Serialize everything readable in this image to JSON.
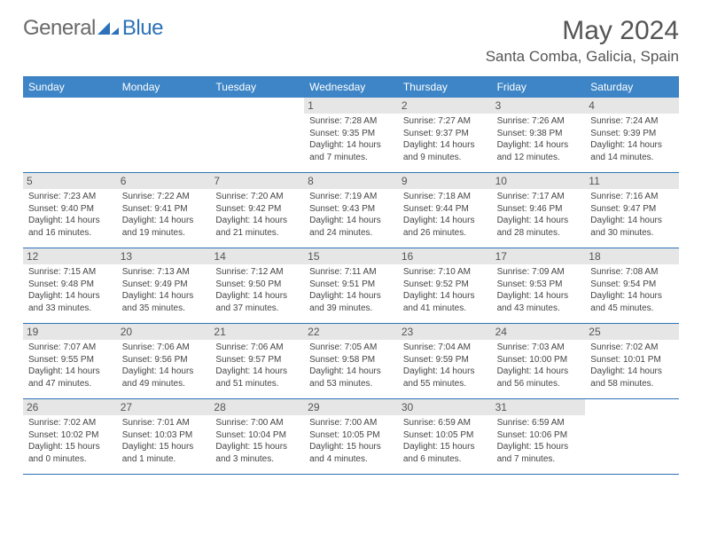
{
  "logo": {
    "textA": "General",
    "textB": "Blue"
  },
  "title": "May 2024",
  "location": "Santa Comba, Galicia, Spain",
  "accent_color": "#2d72b8",
  "header_bg": "#3d85c6",
  "daynum_bg": "#e6e6e6",
  "dow": [
    "Sunday",
    "Monday",
    "Tuesday",
    "Wednesday",
    "Thursday",
    "Friday",
    "Saturday"
  ],
  "weeks": [
    [
      {
        "n": "",
        "lines": []
      },
      {
        "n": "",
        "lines": []
      },
      {
        "n": "",
        "lines": []
      },
      {
        "n": "1",
        "lines": [
          "Sunrise: 7:28 AM",
          "Sunset: 9:35 PM",
          "Daylight: 14 hours",
          "and 7 minutes."
        ]
      },
      {
        "n": "2",
        "lines": [
          "Sunrise: 7:27 AM",
          "Sunset: 9:37 PM",
          "Daylight: 14 hours",
          "and 9 minutes."
        ]
      },
      {
        "n": "3",
        "lines": [
          "Sunrise: 7:26 AM",
          "Sunset: 9:38 PM",
          "Daylight: 14 hours",
          "and 12 minutes."
        ]
      },
      {
        "n": "4",
        "lines": [
          "Sunrise: 7:24 AM",
          "Sunset: 9:39 PM",
          "Daylight: 14 hours",
          "and 14 minutes."
        ]
      }
    ],
    [
      {
        "n": "5",
        "lines": [
          "Sunrise: 7:23 AM",
          "Sunset: 9:40 PM",
          "Daylight: 14 hours",
          "and 16 minutes."
        ]
      },
      {
        "n": "6",
        "lines": [
          "Sunrise: 7:22 AM",
          "Sunset: 9:41 PM",
          "Daylight: 14 hours",
          "and 19 minutes."
        ]
      },
      {
        "n": "7",
        "lines": [
          "Sunrise: 7:20 AM",
          "Sunset: 9:42 PM",
          "Daylight: 14 hours",
          "and 21 minutes."
        ]
      },
      {
        "n": "8",
        "lines": [
          "Sunrise: 7:19 AM",
          "Sunset: 9:43 PM",
          "Daylight: 14 hours",
          "and 24 minutes."
        ]
      },
      {
        "n": "9",
        "lines": [
          "Sunrise: 7:18 AM",
          "Sunset: 9:44 PM",
          "Daylight: 14 hours",
          "and 26 minutes."
        ]
      },
      {
        "n": "10",
        "lines": [
          "Sunrise: 7:17 AM",
          "Sunset: 9:46 PM",
          "Daylight: 14 hours",
          "and 28 minutes."
        ]
      },
      {
        "n": "11",
        "lines": [
          "Sunrise: 7:16 AM",
          "Sunset: 9:47 PM",
          "Daylight: 14 hours",
          "and 30 minutes."
        ]
      }
    ],
    [
      {
        "n": "12",
        "lines": [
          "Sunrise: 7:15 AM",
          "Sunset: 9:48 PM",
          "Daylight: 14 hours",
          "and 33 minutes."
        ]
      },
      {
        "n": "13",
        "lines": [
          "Sunrise: 7:13 AM",
          "Sunset: 9:49 PM",
          "Daylight: 14 hours",
          "and 35 minutes."
        ]
      },
      {
        "n": "14",
        "lines": [
          "Sunrise: 7:12 AM",
          "Sunset: 9:50 PM",
          "Daylight: 14 hours",
          "and 37 minutes."
        ]
      },
      {
        "n": "15",
        "lines": [
          "Sunrise: 7:11 AM",
          "Sunset: 9:51 PM",
          "Daylight: 14 hours",
          "and 39 minutes."
        ]
      },
      {
        "n": "16",
        "lines": [
          "Sunrise: 7:10 AM",
          "Sunset: 9:52 PM",
          "Daylight: 14 hours",
          "and 41 minutes."
        ]
      },
      {
        "n": "17",
        "lines": [
          "Sunrise: 7:09 AM",
          "Sunset: 9:53 PM",
          "Daylight: 14 hours",
          "and 43 minutes."
        ]
      },
      {
        "n": "18",
        "lines": [
          "Sunrise: 7:08 AM",
          "Sunset: 9:54 PM",
          "Daylight: 14 hours",
          "and 45 minutes."
        ]
      }
    ],
    [
      {
        "n": "19",
        "lines": [
          "Sunrise: 7:07 AM",
          "Sunset: 9:55 PM",
          "Daylight: 14 hours",
          "and 47 minutes."
        ]
      },
      {
        "n": "20",
        "lines": [
          "Sunrise: 7:06 AM",
          "Sunset: 9:56 PM",
          "Daylight: 14 hours",
          "and 49 minutes."
        ]
      },
      {
        "n": "21",
        "lines": [
          "Sunrise: 7:06 AM",
          "Sunset: 9:57 PM",
          "Daylight: 14 hours",
          "and 51 minutes."
        ]
      },
      {
        "n": "22",
        "lines": [
          "Sunrise: 7:05 AM",
          "Sunset: 9:58 PM",
          "Daylight: 14 hours",
          "and 53 minutes."
        ]
      },
      {
        "n": "23",
        "lines": [
          "Sunrise: 7:04 AM",
          "Sunset: 9:59 PM",
          "Daylight: 14 hours",
          "and 55 minutes."
        ]
      },
      {
        "n": "24",
        "lines": [
          "Sunrise: 7:03 AM",
          "Sunset: 10:00 PM",
          "Daylight: 14 hours",
          "and 56 minutes."
        ]
      },
      {
        "n": "25",
        "lines": [
          "Sunrise: 7:02 AM",
          "Sunset: 10:01 PM",
          "Daylight: 14 hours",
          "and 58 minutes."
        ]
      }
    ],
    [
      {
        "n": "26",
        "lines": [
          "Sunrise: 7:02 AM",
          "Sunset: 10:02 PM",
          "Daylight: 15 hours",
          "and 0 minutes."
        ]
      },
      {
        "n": "27",
        "lines": [
          "Sunrise: 7:01 AM",
          "Sunset: 10:03 PM",
          "Daylight: 15 hours",
          "and 1 minute."
        ]
      },
      {
        "n": "28",
        "lines": [
          "Sunrise: 7:00 AM",
          "Sunset: 10:04 PM",
          "Daylight: 15 hours",
          "and 3 minutes."
        ]
      },
      {
        "n": "29",
        "lines": [
          "Sunrise: 7:00 AM",
          "Sunset: 10:05 PM",
          "Daylight: 15 hours",
          "and 4 minutes."
        ]
      },
      {
        "n": "30",
        "lines": [
          "Sunrise: 6:59 AM",
          "Sunset: 10:05 PM",
          "Daylight: 15 hours",
          "and 6 minutes."
        ]
      },
      {
        "n": "31",
        "lines": [
          "Sunrise: 6:59 AM",
          "Sunset: 10:06 PM",
          "Daylight: 15 hours",
          "and 7 minutes."
        ]
      },
      {
        "n": "",
        "lines": []
      }
    ]
  ]
}
